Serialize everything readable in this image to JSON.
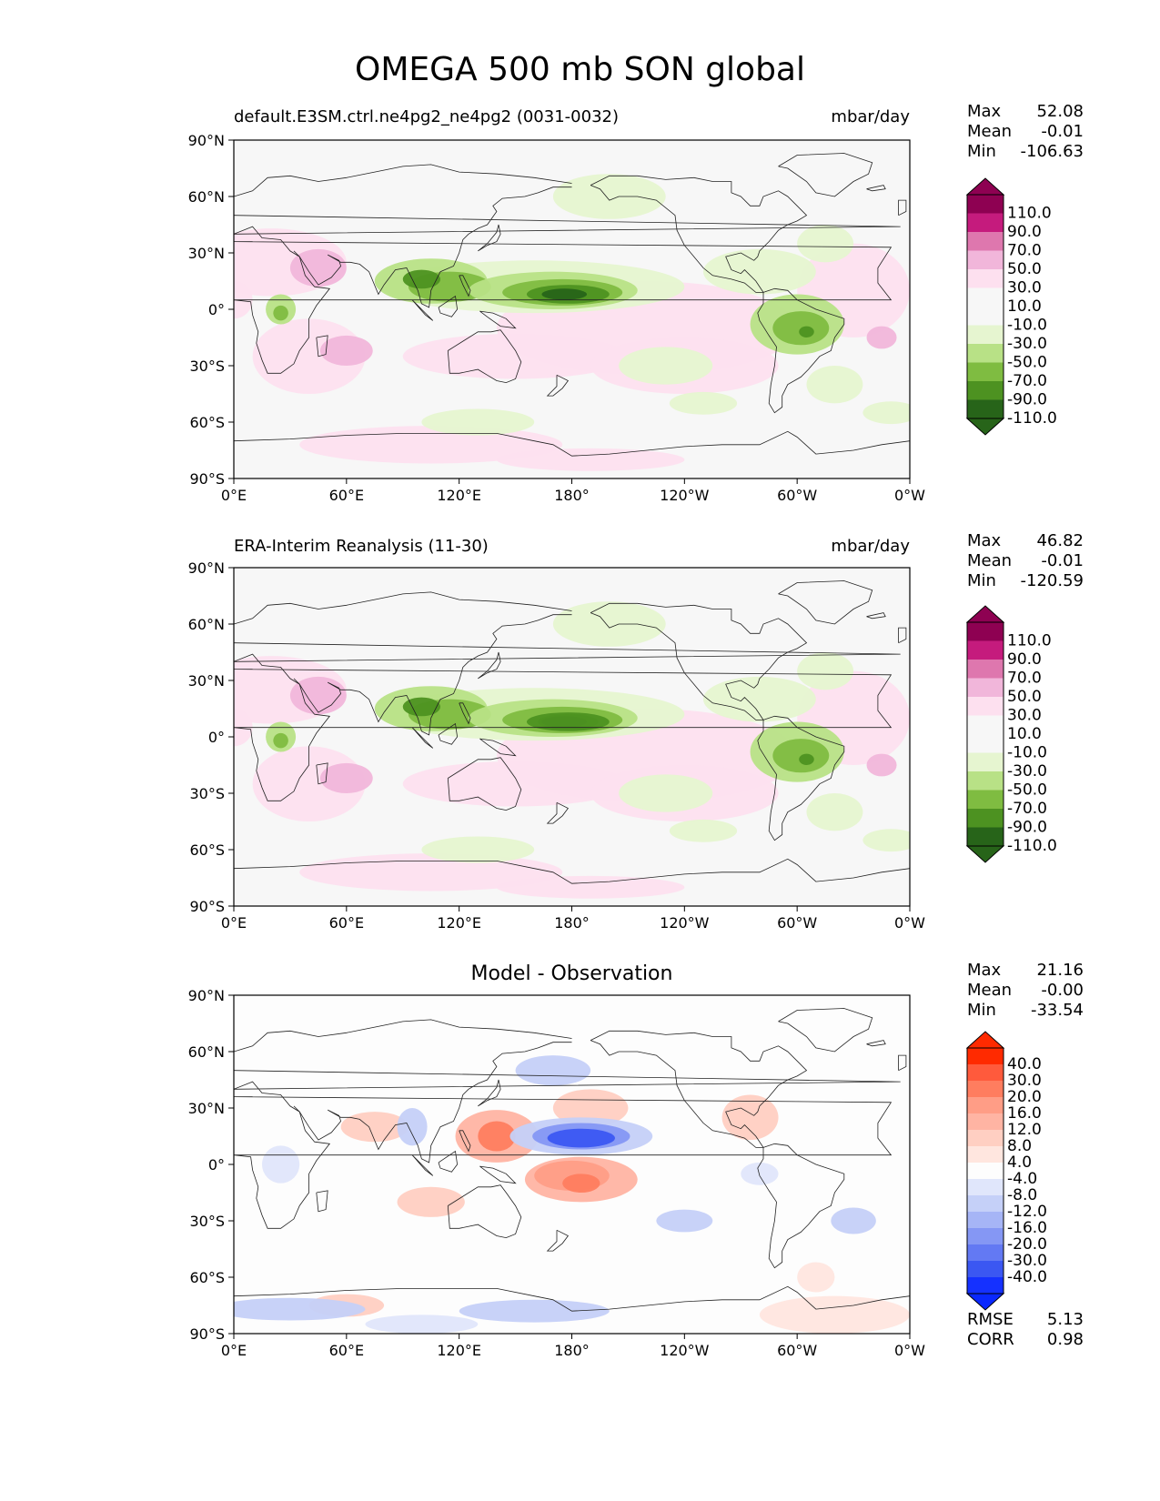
{
  "title": "OMEGA 500 mb SON global",
  "chart_data": [
    {
      "type": "heatmap",
      "title_left": "default.E3SM.ctrl.ne4pg2_ne4pg2 (0031-0032)",
      "title_right": "mbar/day",
      "title_center": "",
      "xticks": [
        "0°E",
        "60°E",
        "120°E",
        "180°",
        "120°W",
        "60°W",
        "0°W"
      ],
      "yticks": [
        "90°N",
        "60°N",
        "30°N",
        "0°",
        "30°S",
        "60°S",
        "90°S"
      ],
      "xlim": [
        0,
        360
      ],
      "ylim": [
        -90,
        90
      ],
      "stats": [
        {
          "label": "Max",
          "value": "52.08"
        },
        {
          "label": "Mean",
          "value": "-0.01"
        },
        {
          "label": "Min",
          "value": "-106.63"
        }
      ],
      "colorbar": {
        "labels": [
          "110.0",
          "90.0",
          "70.0",
          "50.0",
          "30.0",
          "10.0",
          "-10.0",
          "-30.0",
          "-50.0",
          "-70.0",
          "-90.0",
          "-110.0"
        ],
        "colors": [
          "#8e0152",
          "#c51b7d",
          "#de77ae",
          "#f1b6da",
          "#fde0ef",
          "#f7f7f7",
          "#f7f7f7",
          "#e6f5d0",
          "#b8e186",
          "#7fbc41",
          "#4d9221",
          "#276419"
        ],
        "top_color": "#8e0152",
        "bottom_color": "#276419"
      }
    },
    {
      "type": "heatmap",
      "title_left": "ERA-Interim Reanalysis (11-30)",
      "title_right": "mbar/day",
      "title_center": "",
      "xticks": [
        "0°E",
        "60°E",
        "120°E",
        "180°",
        "120°W",
        "60°W",
        "0°W"
      ],
      "yticks": [
        "90°N",
        "60°N",
        "30°N",
        "0°",
        "30°S",
        "60°S",
        "90°S"
      ],
      "xlim": [
        0,
        360
      ],
      "ylim": [
        -90,
        90
      ],
      "stats": [
        {
          "label": "Max",
          "value": "46.82"
        },
        {
          "label": "Mean",
          "value": "-0.01"
        },
        {
          "label": "Min",
          "value": "-120.59"
        }
      ],
      "colorbar": {
        "labels": [
          "110.0",
          "90.0",
          "70.0",
          "50.0",
          "30.0",
          "10.0",
          "-10.0",
          "-30.0",
          "-50.0",
          "-70.0",
          "-90.0",
          "-110.0"
        ],
        "colors": [
          "#8e0152",
          "#c51b7d",
          "#de77ae",
          "#f1b6da",
          "#fde0ef",
          "#f7f7f7",
          "#f7f7f7",
          "#e6f5d0",
          "#b8e186",
          "#7fbc41",
          "#4d9221",
          "#276419"
        ],
        "top_color": "#8e0152",
        "bottom_color": "#276419"
      }
    },
    {
      "type": "heatmap",
      "title_left": "",
      "title_right": "",
      "title_center": "Model - Observation",
      "xticks": [
        "0°E",
        "60°E",
        "120°E",
        "180°",
        "120°W",
        "60°W",
        "0°W"
      ],
      "yticks": [
        "90°N",
        "60°N",
        "30°N",
        "0°",
        "30°S",
        "60°S",
        "90°S"
      ],
      "xlim": [
        0,
        360
      ],
      "ylim": [
        -90,
        90
      ],
      "stats": [
        {
          "label": "Max",
          "value": "21.16"
        },
        {
          "label": "Mean",
          "value": "-0.00"
        },
        {
          "label": "Min",
          "value": "-33.54"
        }
      ],
      "colorbar": {
        "labels": [
          "40.0",
          "30.0",
          "20.0",
          "16.0",
          "12.0",
          "8.0",
          "4.0",
          "-4.0",
          "-8.0",
          "-12.0",
          "-16.0",
          "-20.0",
          "-30.0",
          "-40.0"
        ],
        "colors": [
          "#ff2a00",
          "#ff5a3c",
          "#ff7d5f",
          "#ff9d86",
          "#ffb4a3",
          "#ffcfc2",
          "#ffe6df",
          "#fdfdfd",
          "#e0e6fb",
          "#c5d0f8",
          "#a6b5f6",
          "#8597f4",
          "#6379f3",
          "#3b57f2",
          "#1531ff"
        ],
        "top_color": "#ff2a00",
        "bottom_color": "#0a28ff"
      },
      "error_stats": [
        {
          "label": "RMSE",
          "value": "5.13"
        },
        {
          "label": "CORR",
          "value": "0.98"
        }
      ]
    }
  ]
}
